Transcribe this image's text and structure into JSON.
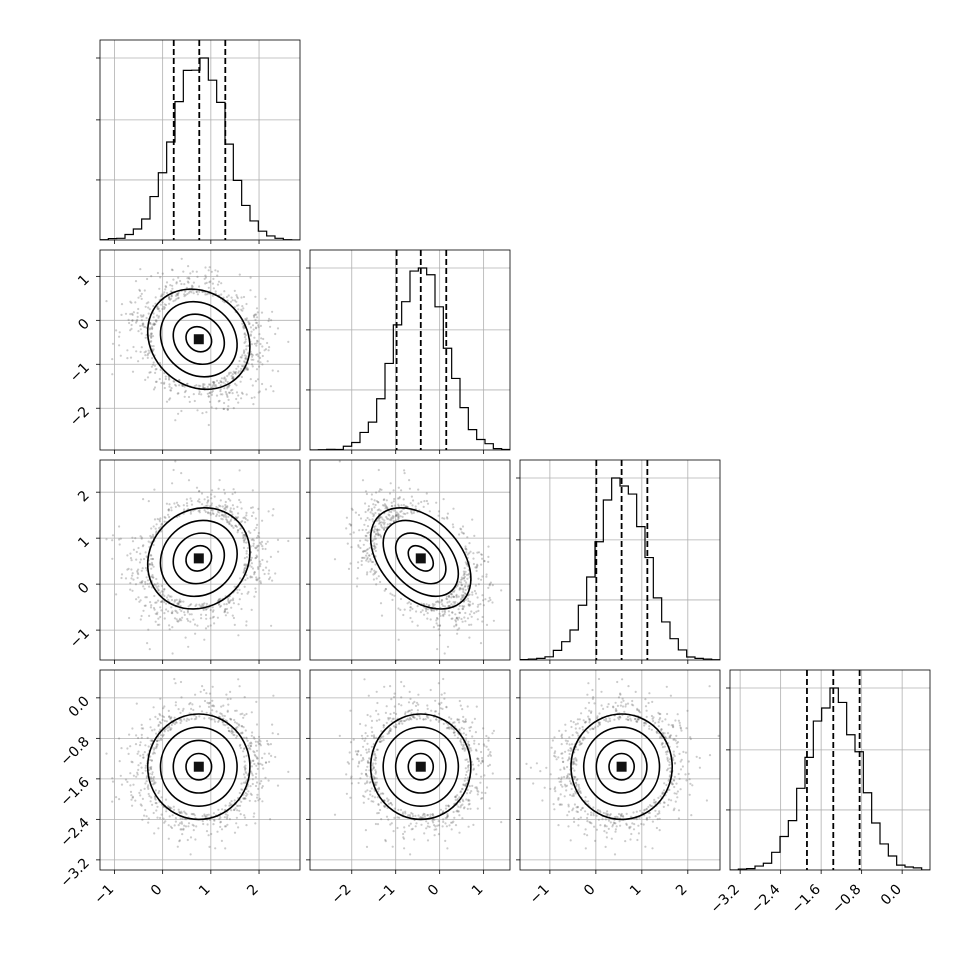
{
  "chart_data": {
    "type": "corner",
    "title": "",
    "parameters": [
      "",
      "",
      "",
      ""
    ],
    "grid": true,
    "quantiles": [
      0.16,
      0.5,
      0.84
    ],
    "ranges": [
      [
        -1.3,
        2.85
      ],
      [
        -2.95,
        1.6
      ],
      [
        -1.65,
        2.7
      ],
      [
        -3.4,
        0.55
      ]
    ],
    "ticks": [
      [
        -1,
        0,
        1,
        2
      ],
      [
        -2,
        -1,
        0,
        1
      ],
      [
        -1,
        0,
        1,
        2
      ],
      [
        -3.2,
        -2.4,
        -1.6,
        -0.8,
        0.0
      ]
    ],
    "tick_labels": [
      [
        "−1",
        "0",
        "1",
        "2"
      ],
      [
        "−2",
        "−1",
        "0",
        "1"
      ],
      [
        "−1",
        "0",
        "1",
        "2"
      ],
      [
        "−3.2",
        "−2.4",
        "−1.6",
        "−0.8",
        "0.0"
      ]
    ],
    "marginals": [
      {
        "mean": 0.75,
        "std": 0.53,
        "q16": 0.23,
        "median": 0.76,
        "q84": 1.3
      },
      {
        "mean": -0.43,
        "std": 0.57,
        "q16": -0.98,
        "median": -0.43,
        "q84": 0.15
      },
      {
        "mean": 0.56,
        "std": 0.55,
        "q16": 0.01,
        "median": 0.56,
        "q84": 1.12
      },
      {
        "mean": -1.36,
        "std": 0.52,
        "q16": -1.88,
        "median": -1.36,
        "q84": -0.84
      }
    ],
    "correlations": [
      {
        "pair": [
          0,
          1
        ],
        "rho": -0.15
      },
      {
        "pair": [
          0,
          2
        ],
        "rho": 0.12
      },
      {
        "pair": [
          1,
          2
        ],
        "rho": -0.4
      },
      {
        "pair": [
          0,
          3
        ],
        "rho": 0.0
      },
      {
        "pair": [
          1,
          3
        ],
        "rho": 0.0
      },
      {
        "pair": [
          2,
          3
        ],
        "rho": 0.0
      }
    ],
    "contour_levels_sigma": [
      0.5,
      1.0,
      1.5,
      2.0
    ]
  }
}
